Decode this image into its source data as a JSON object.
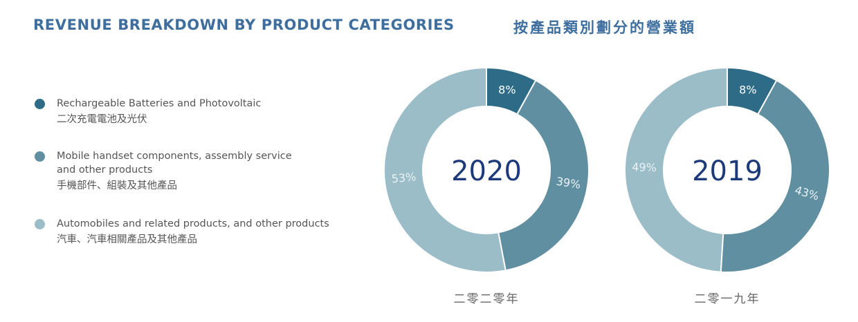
{
  "header": {
    "title_en": "REVENUE BREAKDOWN BY PRODUCT CATEGORIES",
    "title_zh": "按產品類別劃分的營業額"
  },
  "colors": {
    "title": "#3d6e9e",
    "slice_dark": "#2d6b86",
    "slice_mid": "#5f8fa1",
    "slice_light": "#9bbdc8",
    "divider": "#ffffff",
    "year_text": "#1c3a7a"
  },
  "legend": [
    {
      "lines": [
        "Rechargeable Batteries and Photovoltaic",
        "二次充電電池及光伏"
      ],
      "color": "#2d6b86"
    },
    {
      "lines": [
        "Mobile handset components, assembly service",
        "and other products",
        "手機部件、組裝及其他產品"
      ],
      "color": "#5f8fa1"
    },
    {
      "lines": [
        "Automobiles and related products, and other products",
        "汽車、汽車相關產品及其他產品"
      ],
      "color": "#9bbdc8"
    }
  ],
  "chart_data": [
    {
      "type": "pie",
      "year_label": "2020",
      "caption": "二零二零年",
      "categories": [
        "Rechargeable Batteries and Photovoltaic",
        "Mobile handset components, assembly service and other products",
        "Automobiles and related products, and other products"
      ],
      "values": [
        8,
        39,
        53
      ],
      "labels": [
        "8%",
        "39%",
        "53%"
      ]
    },
    {
      "type": "pie",
      "year_label": "2019",
      "caption": "二零一九年",
      "categories": [
        "Rechargeable Batteries and Photovoltaic",
        "Mobile handset components, assembly service and other products",
        "Automobiles and related products, and other products"
      ],
      "values": [
        8,
        43,
        49
      ],
      "labels": [
        "8%",
        "43%",
        "49%"
      ]
    }
  ]
}
